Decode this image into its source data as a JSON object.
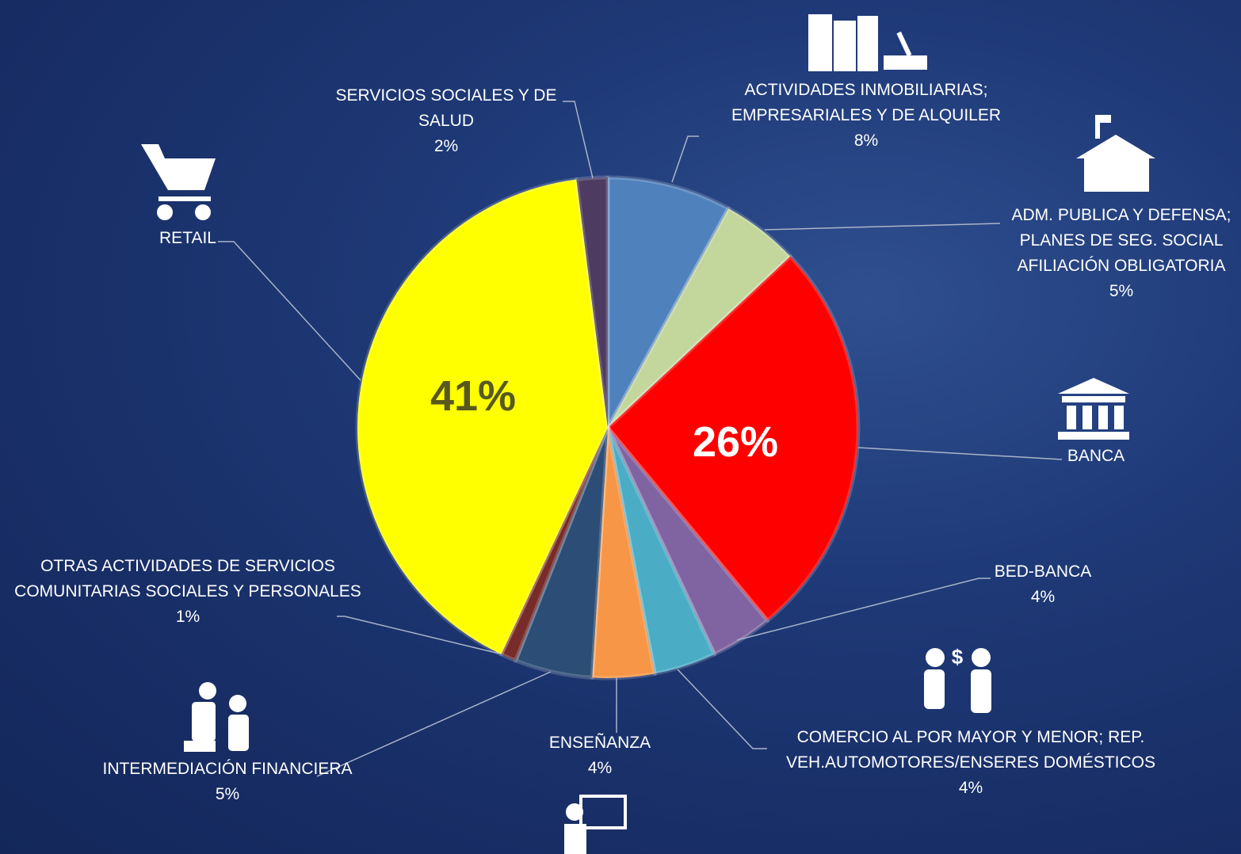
{
  "chart_data": {
    "type": "pie",
    "categories": [
      "ACTIVIDADES INMOBILIARIAS; EMPRESARIALES Y DE ALQUILER",
      "ADM. PUBLICA Y DEFENSA; PLANES DE SEG. SOCIAL AFILIACIÓN OBLIGATORIA",
      "BANCA",
      "BED-BANCA",
      "COMERCIO AL POR MAYOR Y MENOR; REP. VEH.AUTOMOTORES/ENSERES DOMÉSTICOS",
      "ENSEÑANZA",
      "INTERMEDIACIÓN FINANCIERA",
      "OTRAS ACTIVIDADES DE SERVICIOS COMUNITARIAS SOCIALES Y PERSONALES",
      "RETAIL",
      "SERVICIOS SOCIALES Y DE SALUD"
    ],
    "values": [
      8,
      5,
      26,
      4,
      4,
      4,
      5,
      1,
      41,
      2
    ],
    "value_labels": [
      "8%",
      "5%",
      "26%",
      "4%",
      "4%",
      "4%",
      "5%",
      "1%",
      "41%",
      "2%"
    ],
    "colors": [
      "#4f81bd",
      "#c3d69b",
      "#ff0000",
      "#8064a2",
      "#4bacc6",
      "#f79646",
      "#2c4d75",
      "#772c2a",
      "#ffff00",
      "#4d3b62"
    ]
  }
}
